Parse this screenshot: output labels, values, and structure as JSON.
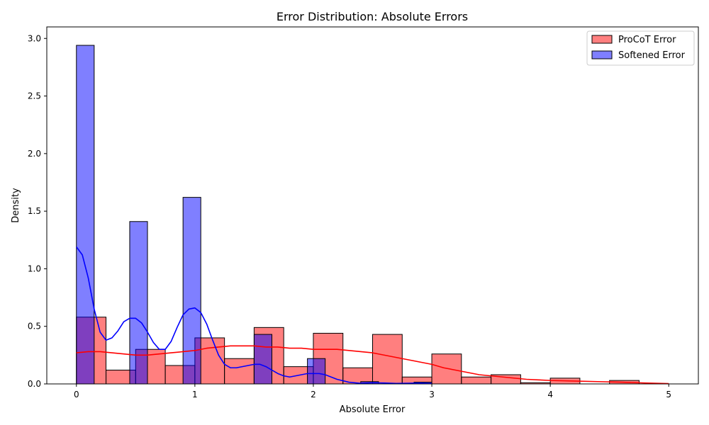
{
  "chart_data": {
    "type": "histogram",
    "title": "Error Distribution: Absolute Errors",
    "xlabel": "Absolute Error",
    "ylabel": "Density",
    "xlim": [
      -0.25,
      5.25
    ],
    "ylim": [
      0,
      3.1
    ],
    "xticks": [
      0,
      1,
      2,
      3,
      4,
      5
    ],
    "yticks": [
      0.0,
      0.5,
      1.0,
      1.5,
      2.0,
      2.5,
      3.0
    ],
    "grid": false,
    "legend_position": "top-right",
    "series": [
      {
        "name": "ProCoT Error",
        "color": "#ff0000",
        "bin_width": 0.25,
        "bins": [
          {
            "x0": 0.0,
            "density": 0.58
          },
          {
            "x0": 0.25,
            "density": 0.12
          },
          {
            "x0": 0.5,
            "density": 0.3
          },
          {
            "x0": 0.75,
            "density": 0.16
          },
          {
            "x0": 1.0,
            "density": 0.4
          },
          {
            "x0": 1.25,
            "density": 0.22
          },
          {
            "x0": 1.5,
            "density": 0.49
          },
          {
            "x0": 1.75,
            "density": 0.15
          },
          {
            "x0": 2.0,
            "density": 0.44
          },
          {
            "x0": 2.25,
            "density": 0.14
          },
          {
            "x0": 2.5,
            "density": 0.43
          },
          {
            "x0": 2.75,
            "density": 0.06
          },
          {
            "x0": 3.0,
            "density": 0.26
          },
          {
            "x0": 3.25,
            "density": 0.06
          },
          {
            "x0": 3.5,
            "density": 0.08
          },
          {
            "x0": 3.75,
            "density": 0.01
          },
          {
            "x0": 4.0,
            "density": 0.05
          },
          {
            "x0": 4.25,
            "density": 0.0
          },
          {
            "x0": 4.5,
            "density": 0.03
          },
          {
            "x0": 4.75,
            "density": 0.0
          }
        ],
        "kde": [
          [
            0.0,
            0.27
          ],
          [
            0.1,
            0.28
          ],
          [
            0.2,
            0.28
          ],
          [
            0.3,
            0.27
          ],
          [
            0.4,
            0.26
          ],
          [
            0.5,
            0.25
          ],
          [
            0.6,
            0.25
          ],
          [
            0.7,
            0.26
          ],
          [
            0.8,
            0.27
          ],
          [
            0.9,
            0.28
          ],
          [
            1.0,
            0.29
          ],
          [
            1.1,
            0.31
          ],
          [
            1.2,
            0.32
          ],
          [
            1.3,
            0.33
          ],
          [
            1.4,
            0.33
          ],
          [
            1.5,
            0.33
          ],
          [
            1.6,
            0.32
          ],
          [
            1.7,
            0.32
          ],
          [
            1.8,
            0.31
          ],
          [
            1.9,
            0.31
          ],
          [
            2.0,
            0.3
          ],
          [
            2.1,
            0.3
          ],
          [
            2.2,
            0.3
          ],
          [
            2.3,
            0.29
          ],
          [
            2.4,
            0.28
          ],
          [
            2.5,
            0.27
          ],
          [
            2.6,
            0.25
          ],
          [
            2.7,
            0.23
          ],
          [
            2.8,
            0.21
          ],
          [
            2.9,
            0.19
          ],
          [
            3.0,
            0.17
          ],
          [
            3.1,
            0.14
          ],
          [
            3.2,
            0.12
          ],
          [
            3.3,
            0.1
          ],
          [
            3.4,
            0.08
          ],
          [
            3.5,
            0.07
          ],
          [
            3.6,
            0.06
          ],
          [
            3.7,
            0.05
          ],
          [
            3.8,
            0.04
          ],
          [
            3.9,
            0.035
          ],
          [
            4.0,
            0.03
          ],
          [
            4.2,
            0.025
          ],
          [
            4.4,
            0.02
          ],
          [
            4.6,
            0.015
          ],
          [
            4.8,
            0.008
          ],
          [
            5.0,
            0.003
          ]
        ]
      },
      {
        "name": "Softened Error",
        "color": "#0000ff",
        "bin_width": 0.15,
        "bins": [
          {
            "x0": 0.0,
            "density": 2.94
          },
          {
            "x0": 0.45,
            "density": 1.41
          },
          {
            "x0": 0.9,
            "density": 1.62
          },
          {
            "x0": 1.5,
            "density": 0.43
          },
          {
            "x0": 1.95,
            "density": 0.22
          },
          {
            "x0": 2.4,
            "density": 0.02
          },
          {
            "x0": 2.85,
            "density": 0.015
          }
        ],
        "kde": [
          [
            0.0,
            1.19
          ],
          [
            0.05,
            1.12
          ],
          [
            0.1,
            0.92
          ],
          [
            0.15,
            0.65
          ],
          [
            0.2,
            0.45
          ],
          [
            0.25,
            0.38
          ],
          [
            0.3,
            0.4
          ],
          [
            0.35,
            0.46
          ],
          [
            0.4,
            0.54
          ],
          [
            0.45,
            0.57
          ],
          [
            0.5,
            0.57
          ],
          [
            0.55,
            0.53
          ],
          [
            0.6,
            0.45
          ],
          [
            0.65,
            0.36
          ],
          [
            0.7,
            0.3
          ],
          [
            0.75,
            0.3
          ],
          [
            0.8,
            0.37
          ],
          [
            0.85,
            0.49
          ],
          [
            0.9,
            0.6
          ],
          [
            0.95,
            0.65
          ],
          [
            1.0,
            0.66
          ],
          [
            1.05,
            0.62
          ],
          [
            1.1,
            0.52
          ],
          [
            1.15,
            0.38
          ],
          [
            1.2,
            0.25
          ],
          [
            1.25,
            0.17
          ],
          [
            1.3,
            0.14
          ],
          [
            1.35,
            0.14
          ],
          [
            1.4,
            0.15
          ],
          [
            1.45,
            0.16
          ],
          [
            1.5,
            0.17
          ],
          [
            1.55,
            0.17
          ],
          [
            1.6,
            0.15
          ],
          [
            1.65,
            0.12
          ],
          [
            1.7,
            0.09
          ],
          [
            1.75,
            0.07
          ],
          [
            1.8,
            0.06
          ],
          [
            1.85,
            0.07
          ],
          [
            1.9,
            0.08
          ],
          [
            1.95,
            0.09
          ],
          [
            2.0,
            0.09
          ],
          [
            2.05,
            0.09
          ],
          [
            2.1,
            0.08
          ],
          [
            2.15,
            0.06
          ],
          [
            2.2,
            0.04
          ],
          [
            2.3,
            0.015
          ],
          [
            2.4,
            0.005
          ],
          [
            2.5,
            0.01
          ],
          [
            2.6,
            0.008
          ],
          [
            2.7,
            0.004
          ],
          [
            2.8,
            0.006
          ],
          [
            2.9,
            0.008
          ],
          [
            3.0,
            0.004
          ]
        ]
      }
    ]
  }
}
